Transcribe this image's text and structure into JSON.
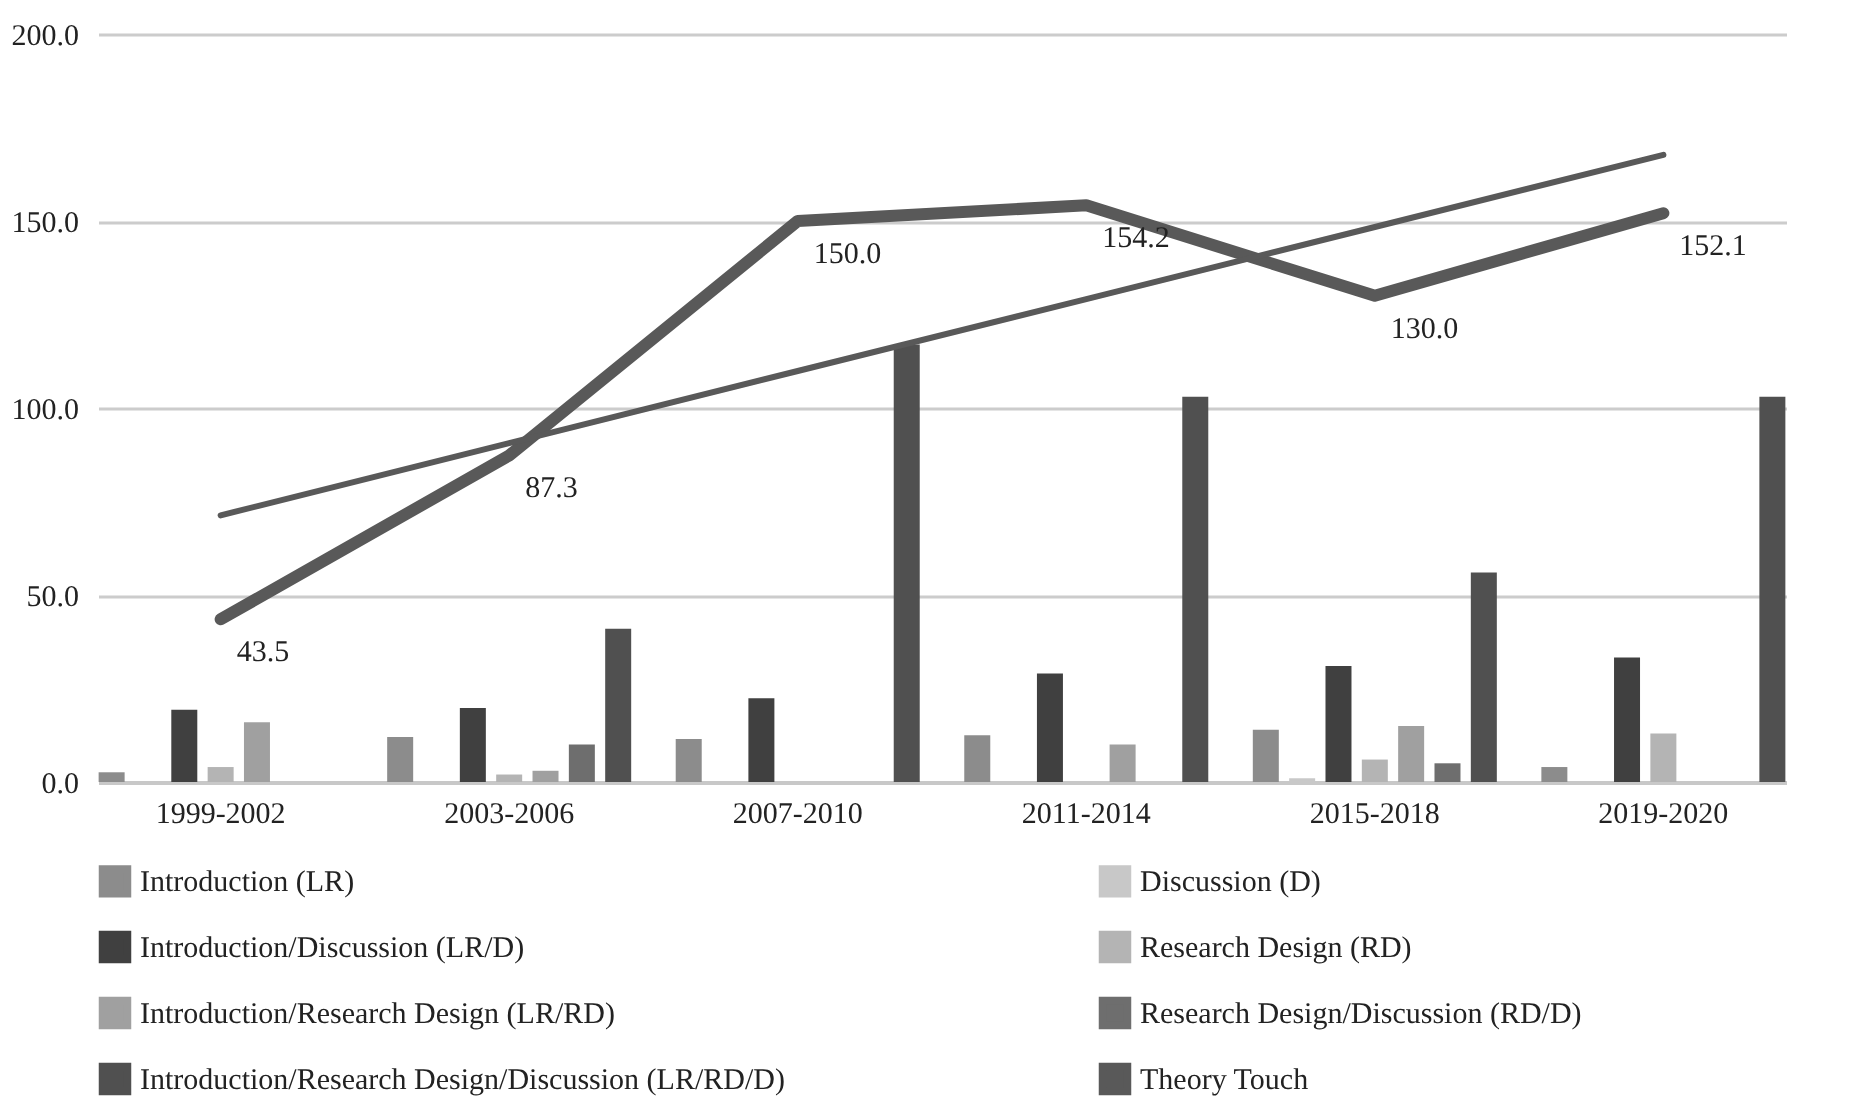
{
  "chart_data": {
    "type": "bar",
    "categories": [
      "1999-2002",
      "2003-2006",
      "2007-2010",
      "2011-2014",
      "2015-2018",
      "2019-2020"
    ],
    "series": [
      {
        "name": "Introduction (LR)",
        "color": "#8c8c8c",
        "values": [
          2.6,
          12,
          11.5,
          12.5,
          14,
          4
        ]
      },
      {
        "name": "Discussion (D)",
        "color": "#c8c8c8",
        "values": [
          0,
          0,
          0,
          0,
          1,
          0
        ]
      },
      {
        "name": "Introduction/Discussion (LR/D)",
        "color": "#404040",
        "values": [
          19.3,
          19.8,
          22.4,
          29,
          31,
          33.3
        ]
      },
      {
        "name": "Research Design (RD)",
        "color": "#b4b4b4",
        "values": [
          4,
          2,
          0,
          0,
          6,
          13
        ]
      },
      {
        "name": "Introduction/Research Design (LR/RD)",
        "color": "#a0a0a0",
        "values": [
          16,
          3,
          0,
          10,
          15,
          0
        ]
      },
      {
        "name": "Research Design/Discussion (RD/D)",
        "color": "#6e6e6e",
        "values": [
          0,
          10,
          0,
          0,
          5,
          0
        ]
      },
      {
        "name": "Introduction/Research Design/Discussion (LR/RD/D)",
        "color": "#505050",
        "values": [
          0,
          41,
          117,
          103,
          56,
          103
        ]
      },
      {
        "name": "Theory Touch",
        "type": "line",
        "color": "#595959",
        "values": [
          43.5,
          87.3,
          150.0,
          154.2,
          130.0,
          152.1
        ],
        "value_labels": [
          "43.5",
          "87.3",
          "150.0",
          "154.2",
          "130.0",
          "152.1"
        ]
      },
      {
        "type": "line",
        "color": "#595959",
        "values": [
          71.3,
          90.6,
          109.9,
          129.1,
          148.4,
          167.7
        ]
      }
    ],
    "ylim": [
      0,
      200
    ],
    "yticks": [
      {
        "value": 0,
        "label": "0.0"
      },
      {
        "value": 50,
        "label": "50.0"
      },
      {
        "value": 100,
        "label": "100.0"
      },
      {
        "value": 150,
        "label": "150.0"
      },
      {
        "value": 200,
        "label": "200.0"
      }
    ],
    "grid": "y",
    "legend": "bottom"
  }
}
